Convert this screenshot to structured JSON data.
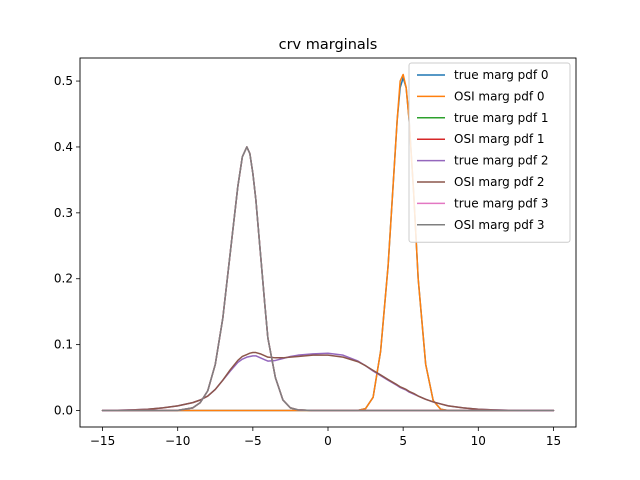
{
  "chart_data": {
    "type": "line",
    "title": "crv marginals",
    "xlabel": "",
    "ylabel": "",
    "xlim": [
      -16.5,
      16.5
    ],
    "ylim": [
      -0.025,
      0.535
    ],
    "xticks": [
      -15,
      -10,
      -5,
      0,
      5,
      10,
      15
    ],
    "yticks": [
      0.0,
      0.1,
      0.2,
      0.3,
      0.4,
      0.5
    ],
    "xtick_labels": [
      "−15",
      "−10",
      "−5",
      "0",
      "5",
      "10",
      "15"
    ],
    "ytick_labels": [
      "0.0",
      "0.1",
      "0.2",
      "0.3",
      "0.4",
      "0.5"
    ],
    "grid": false,
    "legend_position": "top-right",
    "x": [
      -15,
      -14,
      -13,
      -12,
      -11,
      -10,
      -9,
      -8.5,
      -8,
      -7.5,
      -7,
      -6.5,
      -6,
      -5.7,
      -5.4,
      -5.2,
      -5,
      -4.8,
      -4.5,
      -4.2,
      -4,
      -3.5,
      -3,
      -2.5,
      -2,
      -1,
      0,
      1,
      2,
      2.5,
      3,
      3.5,
      4,
      4.3,
      4.6,
      4.8,
      5,
      5.2,
      5.4,
      5.7,
      6,
      6.5,
      7,
      7.5,
      8,
      9,
      10,
      11,
      12,
      13,
      14,
      15
    ],
    "series": [
      {
        "name": "true marg pdf 0",
        "color": "#1f77b4",
        "values": [
          0,
          0,
          0,
          0,
          0,
          0,
          0,
          0,
          0,
          0,
          0,
          0,
          0,
          0,
          0,
          0,
          0,
          0,
          0,
          0,
          0,
          0,
          0,
          0,
          0,
          0,
          0,
          0,
          0.0002,
          0.003,
          0.02,
          0.09,
          0.22,
          0.33,
          0.44,
          0.49,
          0.505,
          0.49,
          0.44,
          0.33,
          0.2,
          0.07,
          0.015,
          0.002,
          0,
          0,
          0,
          0,
          0,
          0,
          0,
          0
        ]
      },
      {
        "name": "OSI marg pdf 0",
        "color": "#ff7f0e",
        "values": [
          0,
          0,
          0,
          0,
          0,
          0,
          0,
          0,
          0,
          0,
          0,
          0,
          0,
          0,
          0,
          0,
          0,
          0,
          0,
          0,
          0,
          0,
          0,
          0,
          0,
          0,
          0,
          0,
          0.0002,
          0.003,
          0.02,
          0.09,
          0.22,
          0.33,
          0.44,
          0.5,
          0.51,
          0.49,
          0.44,
          0.33,
          0.2,
          0.07,
          0.015,
          0.002,
          0,
          0,
          0,
          0,
          0,
          0,
          0,
          0
        ]
      },
      {
        "name": "true marg pdf 1",
        "color": "#2ca02c",
        "values": [
          0,
          0,
          0,
          0,
          0,
          0.0002,
          0.004,
          0.012,
          0.03,
          0.07,
          0.14,
          0.24,
          0.34,
          0.385,
          0.4,
          0.39,
          0.36,
          0.32,
          0.24,
          0.16,
          0.11,
          0.05,
          0.016,
          0.004,
          0.001,
          0,
          0,
          0,
          0,
          0,
          0,
          0,
          0,
          0,
          0,
          0,
          0,
          0,
          0,
          0,
          0,
          0,
          0,
          0,
          0,
          0,
          0,
          0,
          0,
          0,
          0,
          0
        ]
      },
      {
        "name": "OSI marg pdf 1",
        "color": "#d62728",
        "values": [
          0,
          0,
          0,
          0,
          0,
          0.0002,
          0.004,
          0.012,
          0.03,
          0.07,
          0.14,
          0.24,
          0.34,
          0.385,
          0.4,
          0.39,
          0.36,
          0.32,
          0.24,
          0.16,
          0.11,
          0.05,
          0.016,
          0.004,
          0.001,
          0,
          0,
          0,
          0,
          0,
          0,
          0,
          0,
          0,
          0,
          0,
          0,
          0,
          0,
          0,
          0,
          0,
          0,
          0,
          0,
          0,
          0,
          0,
          0,
          0,
          0,
          0
        ]
      },
      {
        "name": "true marg pdf 2",
        "color": "#9467bd",
        "values": [
          0,
          0.0005,
          0.001,
          0.002,
          0.004,
          0.007,
          0.012,
          0.016,
          0.022,
          0.032,
          0.046,
          0.06,
          0.073,
          0.078,
          0.081,
          0.082,
          0.083,
          0.083,
          0.08,
          0.077,
          0.075,
          0.076,
          0.079,
          0.082,
          0.084,
          0.086,
          0.087,
          0.084,
          0.075,
          0.068,
          0.06,
          0.053,
          0.046,
          0.042,
          0.038,
          0.035,
          0.033,
          0.031,
          0.028,
          0.025,
          0.022,
          0.017,
          0.013,
          0.01,
          0.007,
          0.004,
          0.002,
          0.001,
          0.0005,
          0,
          0,
          0
        ]
      },
      {
        "name": "OSI marg pdf 2",
        "color": "#8c564b",
        "values": [
          0,
          0.0005,
          0.001,
          0.002,
          0.004,
          0.007,
          0.012,
          0.016,
          0.022,
          0.032,
          0.046,
          0.062,
          0.076,
          0.082,
          0.085,
          0.087,
          0.088,
          0.088,
          0.086,
          0.083,
          0.081,
          0.08,
          0.08,
          0.081,
          0.082,
          0.084,
          0.084,
          0.081,
          0.074,
          0.068,
          0.061,
          0.054,
          0.047,
          0.043,
          0.039,
          0.036,
          0.034,
          0.032,
          0.029,
          0.026,
          0.022,
          0.017,
          0.013,
          0.01,
          0.007,
          0.004,
          0.002,
          0.001,
          0.0005,
          0,
          0,
          0
        ]
      },
      {
        "name": "true marg pdf 3",
        "color": "#e377c2",
        "values": [
          0,
          0,
          0,
          0,
          0,
          0.0002,
          0.004,
          0.012,
          0.03,
          0.07,
          0.14,
          0.24,
          0.34,
          0.385,
          0.4,
          0.39,
          0.36,
          0.32,
          0.24,
          0.16,
          0.11,
          0.05,
          0.016,
          0.004,
          0.001,
          0,
          0,
          0,
          0,
          0,
          0,
          0,
          0,
          0,
          0,
          0,
          0,
          0,
          0,
          0,
          0,
          0,
          0,
          0,
          0,
          0,
          0,
          0,
          0,
          0,
          0,
          0
        ]
      },
      {
        "name": "OSI marg pdf 3",
        "color": "#7f7f7f",
        "values": [
          0,
          0,
          0,
          0,
          0,
          0.0002,
          0.004,
          0.012,
          0.03,
          0.07,
          0.14,
          0.24,
          0.34,
          0.385,
          0.4,
          0.39,
          0.36,
          0.32,
          0.24,
          0.16,
          0.11,
          0.05,
          0.016,
          0.004,
          0.001,
          0,
          0,
          0,
          0,
          0,
          0,
          0,
          0,
          0,
          0,
          0,
          0,
          0,
          0,
          0,
          0,
          0,
          0,
          0,
          0,
          0,
          0,
          0,
          0,
          0,
          0,
          0
        ]
      }
    ]
  }
}
